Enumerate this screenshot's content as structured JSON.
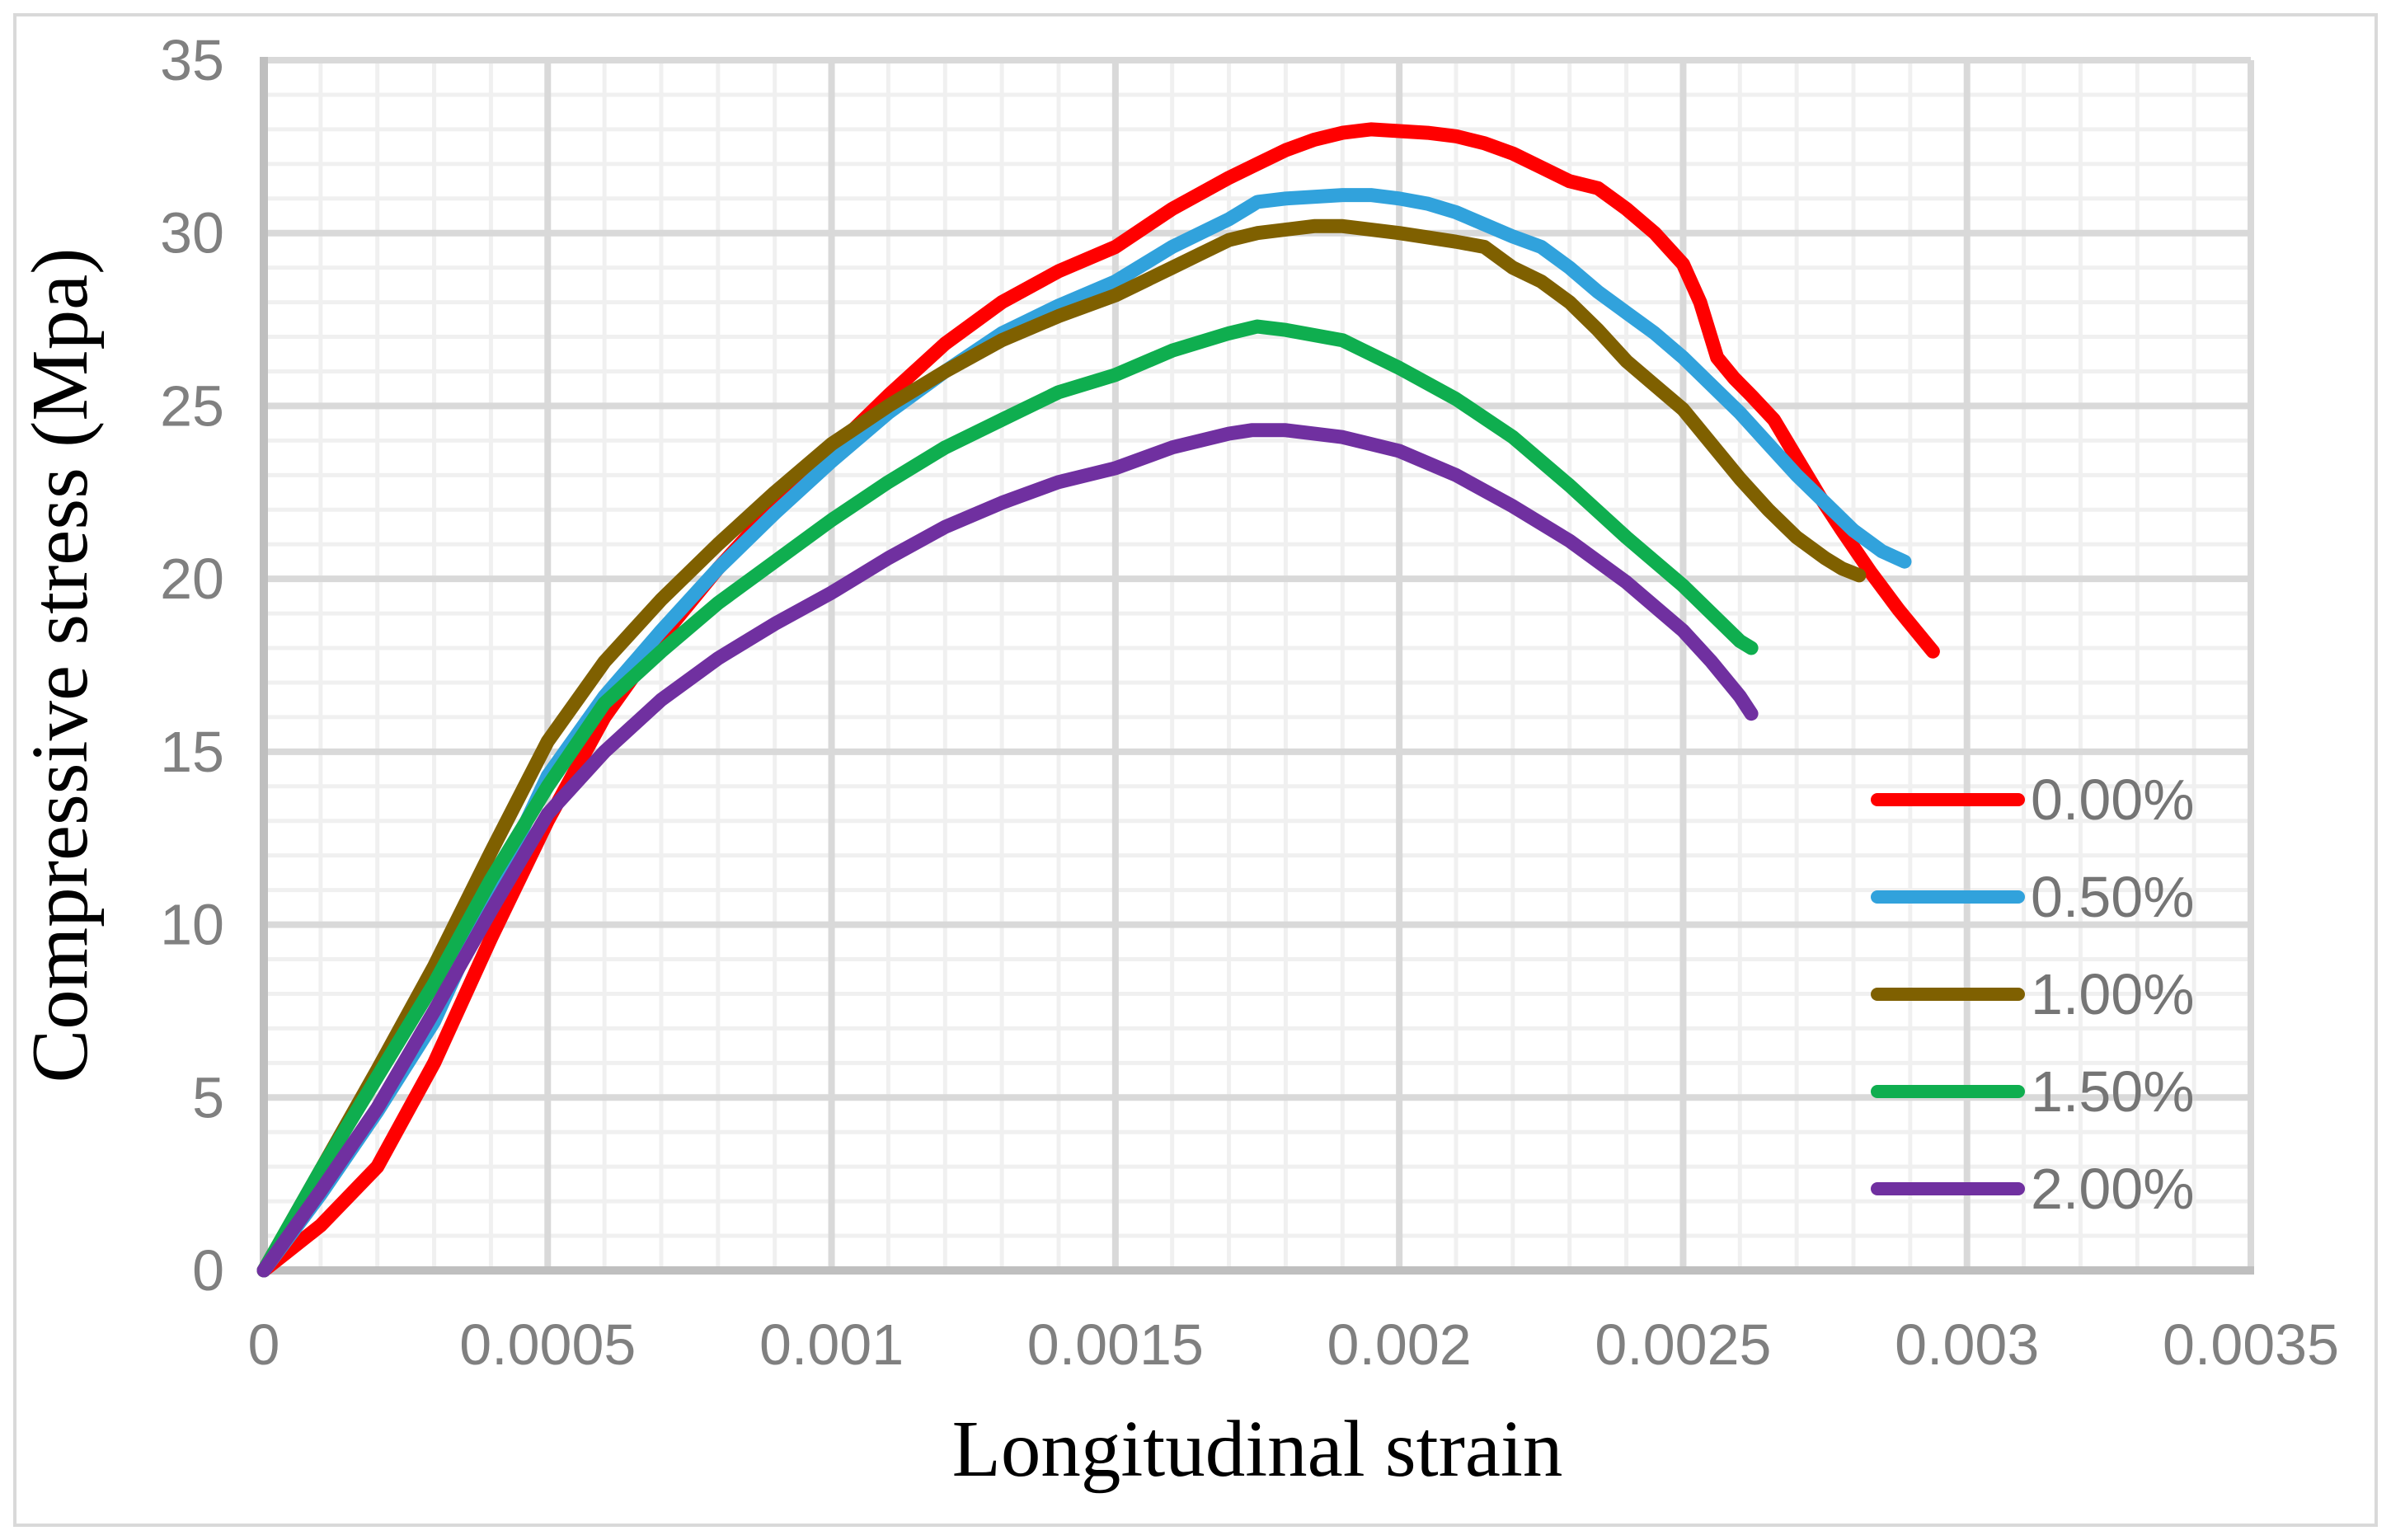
{
  "chart_data": {
    "type": "line",
    "title": "",
    "xlabel": "Longitudinal strain",
    "ylabel": "Compressive stress (Mpa)",
    "xlim": [
      0,
      0.0035
    ],
    "ylim": [
      0,
      35
    ],
    "grid": {
      "minor_x_step": 0.0001,
      "major_x_step": 0.0005,
      "minor_y_step": 1,
      "major_y_step": 5,
      "grid_on": true
    },
    "legend_position": "inside-right",
    "x_ticks": [
      {
        "v": 0,
        "label": "0"
      },
      {
        "v": 0.0005,
        "label": "0.0005"
      },
      {
        "v": 0.001,
        "label": "0.001"
      },
      {
        "v": 0.0015,
        "label": "0.0015"
      },
      {
        "v": 0.002,
        "label": "0.002"
      },
      {
        "v": 0.0025,
        "label": "0.0025"
      },
      {
        "v": 0.003,
        "label": "0.003"
      },
      {
        "v": 0.0035,
        "label": "0.0035"
      }
    ],
    "y_ticks": [
      {
        "v": 0,
        "label": "0"
      },
      {
        "v": 5,
        "label": "5"
      },
      {
        "v": 10,
        "label": "10"
      },
      {
        "v": 15,
        "label": "15"
      },
      {
        "v": 20,
        "label": "20"
      },
      {
        "v": 25,
        "label": "25"
      },
      {
        "v": 30,
        "label": "30"
      },
      {
        "v": 35,
        "label": "35"
      }
    ],
    "series": [
      {
        "name": "0.00%",
        "color": "#FF0000",
        "points": [
          [
            0,
            0
          ],
          [
            0.0001,
            1.3
          ],
          [
            0.0002,
            3.0
          ],
          [
            0.0003,
            6.0
          ],
          [
            0.0004,
            9.6
          ],
          [
            0.0005,
            13.0
          ],
          [
            0.0006,
            16.0
          ],
          [
            0.0007,
            18.3
          ],
          [
            0.0008,
            20.3
          ],
          [
            0.0009,
            22.1
          ],
          [
            0.001,
            23.7
          ],
          [
            0.0011,
            25.3
          ],
          [
            0.0012,
            26.8
          ],
          [
            0.0013,
            28.0
          ],
          [
            0.0014,
            28.9
          ],
          [
            0.0015,
            29.6
          ],
          [
            0.0016,
            30.7
          ],
          [
            0.0017,
            31.6
          ],
          [
            0.0018,
            32.4
          ],
          [
            0.00185,
            32.7
          ],
          [
            0.0019,
            32.9
          ],
          [
            0.00195,
            33.0
          ],
          [
            0.002,
            32.95
          ],
          [
            0.00205,
            32.9
          ],
          [
            0.0021,
            32.8
          ],
          [
            0.00215,
            32.6
          ],
          [
            0.0022,
            32.3
          ],
          [
            0.00225,
            31.9
          ],
          [
            0.0023,
            31.5
          ],
          [
            0.00235,
            31.3
          ],
          [
            0.0024,
            30.7
          ],
          [
            0.00245,
            30.0
          ],
          [
            0.0025,
            29.1
          ],
          [
            0.00253,
            28.0
          ],
          [
            0.00256,
            26.4
          ],
          [
            0.00259,
            25.8
          ],
          [
            0.00262,
            25.3
          ],
          [
            0.00266,
            24.6
          ],
          [
            0.0027,
            23.5
          ],
          [
            0.00274,
            22.4
          ],
          [
            0.00278,
            21.4
          ],
          [
            0.00283,
            20.2
          ],
          [
            0.00288,
            19.1
          ],
          [
            0.00294,
            17.9
          ]
        ]
      },
      {
        "name": "0.50%",
        "color": "#31A2DC",
        "points": [
          [
            0,
            0
          ],
          [
            0.0001,
            2.2
          ],
          [
            0.0002,
            4.6
          ],
          [
            0.0003,
            7.2
          ],
          [
            0.0004,
            10.8
          ],
          [
            0.0005,
            14.3
          ],
          [
            0.0006,
            16.6
          ],
          [
            0.0007,
            18.5
          ],
          [
            0.0008,
            20.3
          ],
          [
            0.0009,
            21.9
          ],
          [
            0.001,
            23.4
          ],
          [
            0.0011,
            24.8
          ],
          [
            0.0012,
            26.0
          ],
          [
            0.0013,
            27.1
          ],
          [
            0.0014,
            27.9
          ],
          [
            0.0015,
            28.6
          ],
          [
            0.0016,
            29.6
          ],
          [
            0.0017,
            30.4
          ],
          [
            0.00175,
            30.9
          ],
          [
            0.0018,
            31.0
          ],
          [
            0.0019,
            31.1
          ],
          [
            0.00195,
            31.1
          ],
          [
            0.002,
            31.0
          ],
          [
            0.00205,
            30.85
          ],
          [
            0.0021,
            30.6
          ],
          [
            0.00215,
            30.25
          ],
          [
            0.0022,
            29.9
          ],
          [
            0.00225,
            29.6
          ],
          [
            0.0023,
            29.0
          ],
          [
            0.00235,
            28.3
          ],
          [
            0.0024,
            27.7
          ],
          [
            0.00245,
            27.1
          ],
          [
            0.0025,
            26.4
          ],
          [
            0.00255,
            25.6
          ],
          [
            0.0026,
            24.8
          ],
          [
            0.00265,
            23.9
          ],
          [
            0.0027,
            23.0
          ],
          [
            0.00275,
            22.2
          ],
          [
            0.0028,
            21.4
          ],
          [
            0.00285,
            20.8
          ],
          [
            0.00289,
            20.5
          ]
        ]
      },
      {
        "name": "1.00%",
        "color": "#7F6000",
        "points": [
          [
            0,
            0
          ],
          [
            0.0001,
            2.9
          ],
          [
            0.0002,
            5.8
          ],
          [
            0.0003,
            8.8
          ],
          [
            0.0004,
            12.1
          ],
          [
            0.0005,
            15.3
          ],
          [
            0.0006,
            17.6
          ],
          [
            0.0007,
            19.4
          ],
          [
            0.0008,
            21.0
          ],
          [
            0.0009,
            22.5
          ],
          [
            0.001,
            23.9
          ],
          [
            0.0011,
            25.0
          ],
          [
            0.0012,
            26.0
          ],
          [
            0.0013,
            26.9
          ],
          [
            0.0014,
            27.6
          ],
          [
            0.0015,
            28.2
          ],
          [
            0.0016,
            29.0
          ],
          [
            0.00165,
            29.4
          ],
          [
            0.0017,
            29.8
          ],
          [
            0.00175,
            30.0
          ],
          [
            0.0018,
            30.1
          ],
          [
            0.00185,
            30.2
          ],
          [
            0.0019,
            30.2
          ],
          [
            0.002,
            30.0
          ],
          [
            0.0021,
            29.75
          ],
          [
            0.00215,
            29.6
          ],
          [
            0.0022,
            29.0
          ],
          [
            0.00225,
            28.6
          ],
          [
            0.0023,
            28.0
          ],
          [
            0.00235,
            27.2
          ],
          [
            0.0024,
            26.3
          ],
          [
            0.00245,
            25.6
          ],
          [
            0.0025,
            24.9
          ],
          [
            0.00255,
            23.9
          ],
          [
            0.0026,
            22.9
          ],
          [
            0.00265,
            22.0
          ],
          [
            0.0027,
            21.2
          ],
          [
            0.00275,
            20.6
          ],
          [
            0.00278,
            20.3
          ],
          [
            0.00281,
            20.1
          ]
        ]
      },
      {
        "name": "1.50%",
        "color": "#0FAE4F",
        "points": [
          [
            0,
            0
          ],
          [
            0.0001,
            2.9
          ],
          [
            0.0002,
            5.6
          ],
          [
            0.0003,
            8.3
          ],
          [
            0.0004,
            11.3
          ],
          [
            0.0005,
            14.0
          ],
          [
            0.0006,
            16.4
          ],
          [
            0.0007,
            17.9
          ],
          [
            0.0008,
            19.3
          ],
          [
            0.0009,
            20.5
          ],
          [
            0.001,
            21.7
          ],
          [
            0.0011,
            22.8
          ],
          [
            0.0012,
            23.8
          ],
          [
            0.0013,
            24.6
          ],
          [
            0.0014,
            25.4
          ],
          [
            0.0015,
            25.9
          ],
          [
            0.0016,
            26.6
          ],
          [
            0.0017,
            27.1
          ],
          [
            0.00175,
            27.3
          ],
          [
            0.0018,
            27.2
          ],
          [
            0.0019,
            26.9
          ],
          [
            0.002,
            26.1
          ],
          [
            0.0021,
            25.2
          ],
          [
            0.0022,
            24.1
          ],
          [
            0.0023,
            22.7
          ],
          [
            0.0024,
            21.2
          ],
          [
            0.0025,
            19.8
          ],
          [
            0.00255,
            19.0
          ],
          [
            0.0026,
            18.2
          ],
          [
            0.00262,
            18.0
          ]
        ]
      },
      {
        "name": "2.00%",
        "color": "#7030A0",
        "points": [
          [
            0,
            0
          ],
          [
            0.0001,
            2.3
          ],
          [
            0.0002,
            4.7
          ],
          [
            0.0003,
            7.5
          ],
          [
            0.0004,
            10.4
          ],
          [
            0.0005,
            13.2
          ],
          [
            0.0006,
            15.0
          ],
          [
            0.0007,
            16.5
          ],
          [
            0.0008,
            17.7
          ],
          [
            0.0009,
            18.7
          ],
          [
            0.001,
            19.6
          ],
          [
            0.0011,
            20.6
          ],
          [
            0.0012,
            21.5
          ],
          [
            0.0013,
            22.2
          ],
          [
            0.0014,
            22.8
          ],
          [
            0.0015,
            23.2
          ],
          [
            0.0016,
            23.8
          ],
          [
            0.0017,
            24.2
          ],
          [
            0.00174,
            24.3
          ],
          [
            0.0018,
            24.3
          ],
          [
            0.0019,
            24.1
          ],
          [
            0.002,
            23.7
          ],
          [
            0.0021,
            23.0
          ],
          [
            0.0022,
            22.1
          ],
          [
            0.0023,
            21.1
          ],
          [
            0.0024,
            19.9
          ],
          [
            0.0025,
            18.5
          ],
          [
            0.00255,
            17.6
          ],
          [
            0.0026,
            16.6
          ],
          [
            0.00262,
            16.1
          ]
        ]
      }
    ],
    "style": {
      "background": "#FFFFFF",
      "outer_border_color": "#D9D9D9",
      "minor_grid_color": "#F0F0F0",
      "major_grid_color": "#D9D9D9",
      "axis_line_color": "#BFBFBF",
      "tick_label_color": "#808080",
      "legend_label_color": "#757575",
      "series_line_width": 17
    }
  }
}
